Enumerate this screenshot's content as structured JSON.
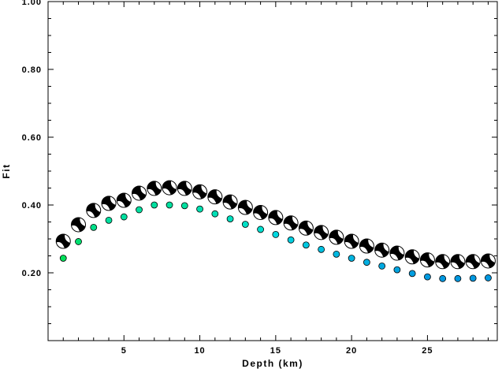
{
  "chart_data": {
    "type": "scatter",
    "title": "",
    "xlabel": "Depth (km)",
    "ylabel": "Fit",
    "xlim": [
      0,
      29.6
    ],
    "ylim": [
      0,
      1.0
    ],
    "x_ticks": [
      5,
      10,
      15,
      20,
      25
    ],
    "x_tick_labels": [
      "5",
      "10",
      "15",
      "20",
      "25"
    ],
    "y_ticks": [
      0.2,
      0.4,
      0.6,
      0.8,
      1.0
    ],
    "y_tick_labels": [
      "0.20",
      "0.40",
      "0.60",
      "0.80",
      "1.00"
    ],
    "grid": false,
    "legend": "none",
    "series": [
      {
        "marker": "focal-mechanism beachball",
        "x": [
          1,
          2,
          3,
          4,
          5,
          6,
          7,
          8,
          9,
          10,
          11,
          12,
          13,
          14,
          15,
          16,
          17,
          18,
          19,
          20,
          21,
          22,
          23,
          24,
          25,
          26,
          27,
          28,
          29
        ],
        "values": [
          0.293,
          0.342,
          0.384,
          0.405,
          0.414,
          0.435,
          0.449,
          0.451,
          0.449,
          0.439,
          0.424,
          0.409,
          0.393,
          0.378,
          0.363,
          0.347,
          0.332,
          0.319,
          0.305,
          0.293,
          0.279,
          0.267,
          0.258,
          0.247,
          0.238,
          0.233,
          0.233,
          0.233,
          0.235
        ]
      },
      {
        "marker": "filled circle",
        "x": [
          1,
          2,
          3,
          4,
          5,
          6,
          7,
          8,
          9,
          10,
          11,
          12,
          13,
          14,
          15,
          16,
          17,
          18,
          19,
          20,
          21,
          22,
          23,
          24,
          25,
          26,
          27,
          28,
          29
        ],
        "values": [
          0.243,
          0.292,
          0.334,
          0.355,
          0.365,
          0.386,
          0.4,
          0.4,
          0.398,
          0.388,
          0.374,
          0.359,
          0.343,
          0.328,
          0.313,
          0.297,
          0.282,
          0.269,
          0.255,
          0.243,
          0.231,
          0.22,
          0.209,
          0.198,
          0.188,
          0.183,
          0.183,
          0.184,
          0.185
        ],
        "colors": [
          "#00e05a",
          "#00e070",
          "#00e08a",
          "#00e0a0",
          "#00e0a0",
          "#00e0a0",
          "#00e0a0",
          "#00e0a0",
          "#00e0a0",
          "#00e0b0",
          "#00e0b6",
          "#00e0c0",
          "#00e0c6",
          "#00e0d0",
          "#00d8e0",
          "#00cfe0",
          "#00c8e0",
          "#00c0e0",
          "#00b8e0",
          "#00b4e0",
          "#00aee0",
          "#00a8e0",
          "#00a4e0",
          "#009ee0",
          "#009ae0",
          "#0098e0",
          "#0098e0",
          "#0098e0",
          "#0098e0"
        ]
      }
    ]
  }
}
